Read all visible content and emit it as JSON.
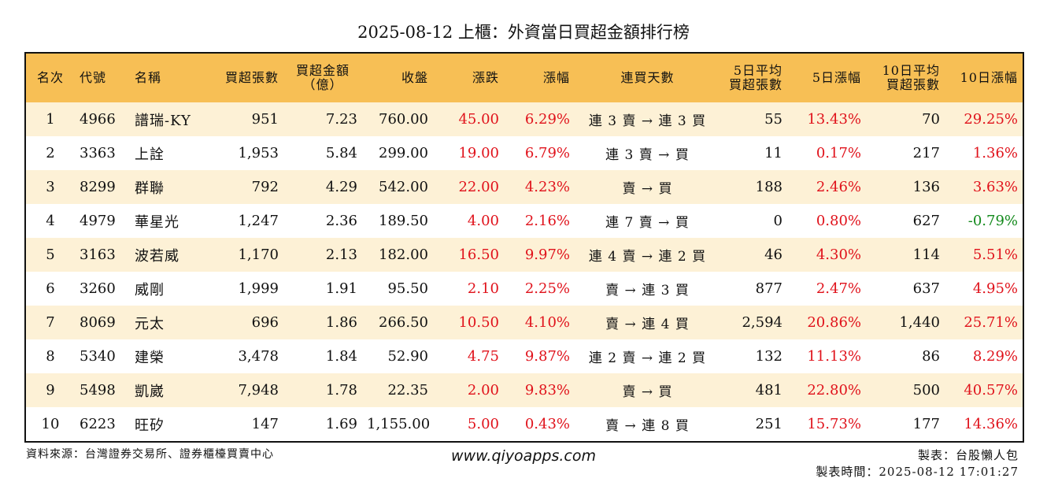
{
  "title": "2025-08-12 上櫃：外資當日買超金額排行榜",
  "headers": {
    "rank": "名次",
    "code": "代號",
    "name": "名稱",
    "buy_shares": "買超張數",
    "buy_amount_l1": "買超金額",
    "buy_amount_l2": "（億）",
    "close": "收盤",
    "change": "漲跌",
    "change_pct": "漲幅",
    "streak": "連買天數",
    "avg5_l1": "5日平均",
    "avg5_l2": "買超張數",
    "pct5": "5日漲幅",
    "avg10_l1": "10日平均",
    "avg10_l2": "買超張數",
    "pct10": "10日漲幅"
  },
  "colors": {
    "header_bg": "#f7bf55",
    "row_alt_bg": "#fdf1d6",
    "up": "#e0121b",
    "down": "#138a1c"
  },
  "rows": [
    {
      "rank": "1",
      "code": "4966",
      "name": "譜瑞-KY",
      "buy_shares": "951",
      "buy_amount": "7.23",
      "close": "760.00",
      "change": "45.00",
      "change_pct": "6.29%",
      "streak": "連 3 賣 → 連 3 買",
      "avg5": "55",
      "pct5": "13.43%",
      "avg10": "70",
      "pct10": "29.25%",
      "pct10_dir": "up"
    },
    {
      "rank": "2",
      "code": "3363",
      "name": "上詮",
      "buy_shares": "1,953",
      "buy_amount": "5.84",
      "close": "299.00",
      "change": "19.00",
      "change_pct": "6.79%",
      "streak": "連 3 賣 → 買",
      "avg5": "11",
      "pct5": "0.17%",
      "avg10": "217",
      "pct10": "1.36%",
      "pct10_dir": "up"
    },
    {
      "rank": "3",
      "code": "8299",
      "name": "群聯",
      "buy_shares": "792",
      "buy_amount": "4.29",
      "close": "542.00",
      "change": "22.00",
      "change_pct": "4.23%",
      "streak": "賣 → 買",
      "avg5": "188",
      "pct5": "2.46%",
      "avg10": "136",
      "pct10": "3.63%",
      "pct10_dir": "up"
    },
    {
      "rank": "4",
      "code": "4979",
      "name": "華星光",
      "buy_shares": "1,247",
      "buy_amount": "2.36",
      "close": "189.50",
      "change": "4.00",
      "change_pct": "2.16%",
      "streak": "連 7 賣 → 買",
      "avg5": "0",
      "pct5": "0.80%",
      "avg10": "627",
      "pct10": "-0.79%",
      "pct10_dir": "down"
    },
    {
      "rank": "5",
      "code": "3163",
      "name": "波若威",
      "buy_shares": "1,170",
      "buy_amount": "2.13",
      "close": "182.00",
      "change": "16.50",
      "change_pct": "9.97%",
      "streak": "連 4 賣 → 連 2 買",
      "avg5": "46",
      "pct5": "4.30%",
      "avg10": "114",
      "pct10": "5.51%",
      "pct10_dir": "up"
    },
    {
      "rank": "6",
      "code": "3260",
      "name": "威剛",
      "buy_shares": "1,999",
      "buy_amount": "1.91",
      "close": "95.50",
      "change": "2.10",
      "change_pct": "2.25%",
      "streak": "賣 → 連 3 買",
      "avg5": "877",
      "pct5": "2.47%",
      "avg10": "637",
      "pct10": "4.95%",
      "pct10_dir": "up"
    },
    {
      "rank": "7",
      "code": "8069",
      "name": "元太",
      "buy_shares": "696",
      "buy_amount": "1.86",
      "close": "266.50",
      "change": "10.50",
      "change_pct": "4.10%",
      "streak": "賣 → 連 4 買",
      "avg5": "2,594",
      "pct5": "20.86%",
      "avg10": "1,440",
      "pct10": "25.71%",
      "pct10_dir": "up"
    },
    {
      "rank": "8",
      "code": "5340",
      "name": "建榮",
      "buy_shares": "3,478",
      "buy_amount": "1.84",
      "close": "52.90",
      "change": "4.75",
      "change_pct": "9.87%",
      "streak": "連 2 賣 → 連 2 買",
      "avg5": "132",
      "pct5": "11.13%",
      "avg10": "86",
      "pct10": "8.29%",
      "pct10_dir": "up"
    },
    {
      "rank": "9",
      "code": "5498",
      "name": "凱崴",
      "buy_shares": "7,948",
      "buy_amount": "1.78",
      "close": "22.35",
      "change": "2.00",
      "change_pct": "9.83%",
      "streak": "賣 → 買",
      "avg5": "481",
      "pct5": "22.80%",
      "avg10": "500",
      "pct10": "40.57%",
      "pct10_dir": "up"
    },
    {
      "rank": "10",
      "code": "6223",
      "name": "旺矽",
      "buy_shares": "147",
      "buy_amount": "1.69",
      "close": "1,155.00",
      "change": "5.00",
      "change_pct": "0.43%",
      "streak": "賣 → 連 8 買",
      "avg5": "251",
      "pct5": "15.73%",
      "avg10": "177",
      "pct10": "14.36%",
      "pct10_dir": "up"
    }
  ],
  "footer": {
    "source": "資料來源：台灣證券交易所、證券櫃檯買賣中心",
    "website": "www.qiyoapps.com",
    "author": "製表：台股懶人包",
    "made_time": "製表時間：2025-08-12 17:01:27"
  }
}
